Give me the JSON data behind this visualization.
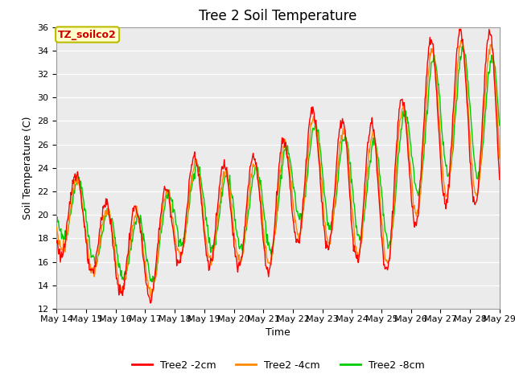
{
  "title": "Tree 2 Soil Temperature",
  "xlabel": "Time",
  "ylabel": "Soil Temperature (C)",
  "ylim": [
    12,
    36
  ],
  "yticks": [
    12,
    14,
    16,
    18,
    20,
    22,
    24,
    26,
    28,
    30,
    32,
    34,
    36
  ],
  "xlim_days": [
    14,
    29
  ],
  "xtick_labels": [
    "May 14",
    "May 15",
    "May 16",
    "May 17",
    "May 18",
    "May 19",
    "May 20",
    "May 21",
    "May 22",
    "May 23",
    "May 24",
    "May 25",
    "May 26",
    "May 27",
    "May 28",
    "May 29"
  ],
  "legend_labels": [
    "Tree2 -2cm",
    "Tree2 -4cm",
    "Tree2 -8cm"
  ],
  "legend_colors": [
    "#ff0000",
    "#ff8800",
    "#00cc00"
  ],
  "bg_color": "#e8e8e8",
  "plot_bg_color": "#ebebeb",
  "annotation_text": "TZ_soilco2",
  "annotation_bg": "#ffffcc",
  "annotation_border": "#bbbb00",
  "annotation_text_color": "#cc0000",
  "line_width": 1.0,
  "title_fontsize": 12,
  "axis_label_fontsize": 9,
  "tick_fontsize": 8,
  "legend_fontsize": 9
}
